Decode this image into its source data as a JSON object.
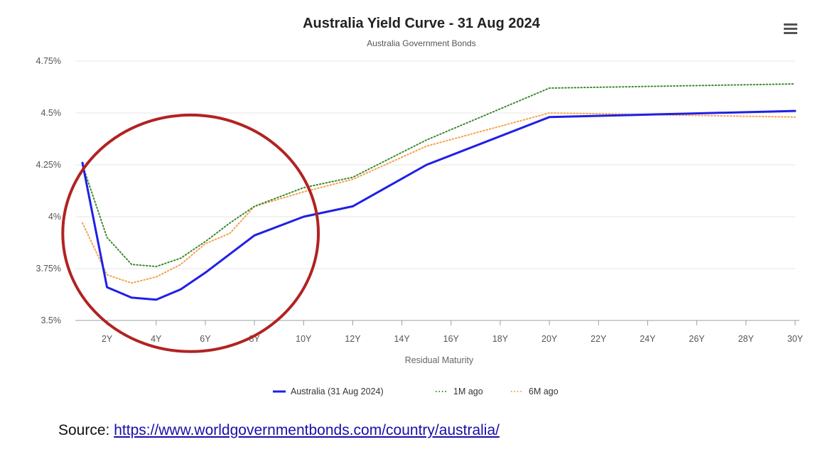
{
  "chart_data": {
    "type": "line",
    "title": "Australia Yield Curve - 31 Aug 2024",
    "subtitle": "Australia Government Bonds",
    "xlabel": "Residual Maturity",
    "ylabel": "",
    "xlim": [
      1,
      30
    ],
    "ylim": [
      3.5,
      4.75
    ],
    "x_ticks": [
      2,
      4,
      6,
      8,
      10,
      12,
      14,
      16,
      18,
      20,
      22,
      24,
      26,
      28,
      30
    ],
    "x_tick_labels": [
      "2Y",
      "4Y",
      "6Y",
      "8Y",
      "10Y",
      "12Y",
      "14Y",
      "16Y",
      "18Y",
      "20Y",
      "22Y",
      "24Y",
      "26Y",
      "28Y",
      "30Y"
    ],
    "y_ticks": [
      3.5,
      3.75,
      4.0,
      4.25,
      4.5,
      4.75
    ],
    "y_tick_labels": [
      "3.5%",
      "3.75%",
      "4%",
      "4.25%",
      "4.5%",
      "4.75%"
    ],
    "grid": "horizontal",
    "legend_position": "bottom-center",
    "series": [
      {
        "name": "Australia (31 Aug 2024)",
        "color": "#1f1fe8",
        "style": "solid",
        "x": [
          1,
          2,
          3,
          4,
          5,
          6,
          7,
          8,
          10,
          12,
          15,
          20,
          30
        ],
        "y": [
          4.26,
          3.66,
          3.61,
          3.6,
          3.65,
          3.73,
          3.82,
          3.91,
          4.0,
          4.05,
          4.25,
          4.48,
          4.51
        ]
      },
      {
        "name": "1M ago",
        "color": "#3c8a2e",
        "style": "dotted",
        "x": [
          1,
          2,
          3,
          4,
          5,
          6,
          7,
          8,
          10,
          12,
          15,
          20,
          30
        ],
        "y": [
          4.25,
          3.9,
          3.77,
          3.76,
          3.8,
          3.88,
          3.97,
          4.05,
          4.14,
          4.19,
          4.37,
          4.62,
          4.64
        ]
      },
      {
        "name": "6M ago",
        "color": "#f5a14c",
        "style": "dotted",
        "x": [
          1,
          2,
          3,
          4,
          5,
          6,
          7,
          8,
          10,
          12,
          15,
          20,
          30
        ],
        "y": [
          3.97,
          3.72,
          3.68,
          3.71,
          3.77,
          3.87,
          3.92,
          4.05,
          4.12,
          4.18,
          4.34,
          4.5,
          4.48
        ]
      }
    ],
    "annotation": {
      "shape": "ellipse",
      "color": "#b22222",
      "center_data": [
        5.4,
        3.92
      ],
      "radius_years": 5.2,
      "radius_value": 0.57
    }
  },
  "menu_icon": "hamburger-menu-icon",
  "source": {
    "label": "Source:",
    "url": "https://www.worldgovernmentbonds.com/country/australia/"
  }
}
